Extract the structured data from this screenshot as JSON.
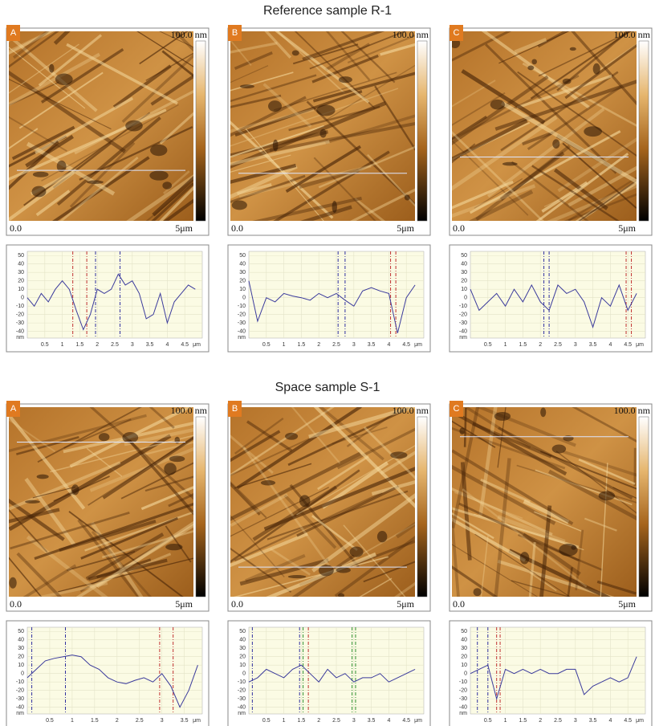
{
  "sections": [
    {
      "title": "Reference sample R-1",
      "panels": [
        {
          "letter": "A",
          "scale_top": "100.0 nm",
          "origin": "0.0",
          "length": "5μm"
        },
        {
          "letter": "B",
          "scale_top": "100.0 nm",
          "origin": "0.0",
          "length": "5μm"
        },
        {
          "letter": "C",
          "scale_top": "100.0 nm",
          "origin": "0.0",
          "length": "5μm"
        }
      ]
    },
    {
      "title": "Space sample S-1",
      "panels": [
        {
          "letter": "A",
          "scale_top": "100.0 nm",
          "origin": "0.0",
          "length": "5μm"
        },
        {
          "letter": "B",
          "scale_top": "100.0 nm",
          "origin": "0.0",
          "length": "5μm"
        },
        {
          "letter": "C",
          "scale_top": "100.0 nm",
          "origin": "0.0",
          "length": "5μm"
        }
      ]
    }
  ],
  "chart_data": [
    {
      "type": "line",
      "y_unit": "nm",
      "x_unit": "μm",
      "color": "#3a3a9c",
      "x": [
        0,
        0.2,
        0.4,
        0.6,
        0.8,
        1.0,
        1.2,
        1.4,
        1.6,
        1.8,
        2.0,
        2.2,
        2.4,
        2.6,
        2.8,
        3.0,
        3.2,
        3.4,
        3.6,
        3.8,
        4.0,
        4.2,
        4.4,
        4.6,
        4.8
      ],
      "values": [
        0,
        -10,
        5,
        -5,
        10,
        20,
        10,
        -15,
        -38,
        -20,
        10,
        5,
        10,
        28,
        15,
        20,
        5,
        -25,
        -20,
        5,
        -30,
        -5,
        5,
        15,
        10
      ],
      "markers": [
        {
          "x": 1.3,
          "color": "#c03030"
        },
        {
          "x": 1.7,
          "color": "#c03030"
        },
        {
          "x": 1.95,
          "color": "#3030a0"
        },
        {
          "x": 2.65,
          "color": "#3030a0"
        }
      ],
      "xlim": [
        0,
        5
      ],
      "ylim": [
        -48,
        55
      ],
      "xticks": [
        0.5,
        1,
        1.5,
        2,
        2.5,
        3,
        3.5,
        4,
        4.5
      ],
      "yticks": [
        50,
        40,
        30,
        20,
        10,
        0,
        -10,
        -20,
        -30,
        -40
      ]
    },
    {
      "type": "line",
      "y_unit": "nm",
      "x_unit": "μm",
      "color": "#3a3a9c",
      "x": [
        0,
        0.25,
        0.5,
        0.75,
        1,
        1.25,
        1.5,
        1.75,
        2,
        2.25,
        2.5,
        2.75,
        3,
        3.25,
        3.5,
        3.75,
        4,
        4.25,
        4.5,
        4.75
      ],
      "values": [
        20,
        -28,
        0,
        -5,
        5,
        2,
        0,
        -3,
        5,
        0,
        5,
        -3,
        -10,
        8,
        12,
        8,
        5,
        -42,
        0,
        15
      ],
      "markers": [
        {
          "x": 2.55,
          "color": "#3030a0"
        },
        {
          "x": 2.75,
          "color": "#3030a0"
        },
        {
          "x": 4.05,
          "color": "#c03030"
        },
        {
          "x": 4.2,
          "color": "#c03030"
        }
      ],
      "xlim": [
        0,
        5
      ],
      "ylim": [
        -48,
        55
      ],
      "xticks": [
        0.5,
        1,
        1.5,
        2,
        2.5,
        3,
        3.5,
        4,
        4.5
      ],
      "yticks": [
        50,
        40,
        30,
        20,
        10,
        0,
        -10,
        -20,
        -30,
        -40
      ]
    },
    {
      "type": "line",
      "y_unit": "nm",
      "x_unit": "μm",
      "color": "#3a3a9c",
      "x": [
        0,
        0.25,
        0.5,
        0.75,
        1,
        1.25,
        1.5,
        1.75,
        2,
        2.25,
        2.5,
        2.75,
        3,
        3.25,
        3.5,
        3.75,
        4,
        4.25,
        4.5,
        4.75
      ],
      "values": [
        10,
        -15,
        -5,
        5,
        -10,
        10,
        -5,
        15,
        -5,
        -15,
        15,
        5,
        10,
        -5,
        -35,
        0,
        -10,
        15,
        -15,
        5
      ],
      "markers": [
        {
          "x": 2.1,
          "color": "#3030a0"
        },
        {
          "x": 2.25,
          "color": "#3030a0"
        },
        {
          "x": 4.45,
          "color": "#c03030"
        },
        {
          "x": 4.6,
          "color": "#c03030"
        }
      ],
      "xlim": [
        0,
        5
      ],
      "ylim": [
        -48,
        55
      ],
      "xticks": [
        0.5,
        1,
        1.5,
        2,
        2.5,
        3,
        3.5,
        4,
        4.5
      ],
      "yticks": [
        50,
        40,
        30,
        20,
        10,
        0,
        -10,
        -20,
        -30,
        -40
      ]
    },
    {
      "type": "line",
      "y_unit": "nm",
      "x_unit": "μm",
      "color": "#3a3a9c",
      "x": [
        0,
        0.2,
        0.4,
        0.6,
        0.8,
        1.0,
        1.2,
        1.4,
        1.6,
        1.8,
        2.0,
        2.2,
        2.4,
        2.6,
        2.8,
        3.0,
        3.2,
        3.4,
        3.6,
        3.8
      ],
      "values": [
        -5,
        5,
        15,
        18,
        20,
        22,
        20,
        10,
        5,
        -5,
        -10,
        -12,
        -8,
        -5,
        -10,
        0,
        -15,
        -40,
        -20,
        10
      ],
      "markers": [
        {
          "x": 0.1,
          "color": "#3030a0"
        },
        {
          "x": 0.85,
          "color": "#3030a0"
        },
        {
          "x": 2.95,
          "color": "#c03030"
        },
        {
          "x": 3.25,
          "color": "#c03030"
        }
      ],
      "xlim": [
        0,
        3.9
      ],
      "ylim": [
        -48,
        55
      ],
      "xticks": [
        0.5,
        1,
        1.5,
        2,
        2.5,
        3,
        3.5
      ],
      "yticks": [
        50,
        40,
        30,
        20,
        10,
        0,
        -10,
        -20,
        -30,
        -40
      ]
    },
    {
      "type": "line",
      "y_unit": "nm",
      "x_unit": "μm",
      "color": "#3a3a9c",
      "x": [
        0,
        0.25,
        0.5,
        0.75,
        1,
        1.25,
        1.5,
        1.75,
        2,
        2.25,
        2.5,
        2.75,
        3,
        3.25,
        3.5,
        3.75,
        4,
        4.25,
        4.5,
        4.75
      ],
      "values": [
        -10,
        -5,
        5,
        0,
        -5,
        5,
        10,
        0,
        -10,
        5,
        -5,
        0,
        -10,
        -5,
        -5,
        0,
        -10,
        -5,
        0,
        5
      ],
      "markers": [
        {
          "x": 0.1,
          "color": "#3030a0"
        },
        {
          "x": 1.45,
          "color": "#3030a0"
        },
        {
          "x": 1.55,
          "color": "#309030"
        },
        {
          "x": 1.7,
          "color": "#c03030"
        },
        {
          "x": 2.95,
          "color": "#309030"
        },
        {
          "x": 3.05,
          "color": "#309030"
        }
      ],
      "xlim": [
        0,
        5
      ],
      "ylim": [
        -48,
        55
      ],
      "xticks": [
        0.5,
        1,
        1.5,
        2,
        2.5,
        3,
        3.5,
        4,
        4.5
      ],
      "yticks": [
        50,
        40,
        30,
        20,
        10,
        0,
        -10,
        -20,
        -30,
        -40
      ]
    },
    {
      "type": "line",
      "y_unit": "nm",
      "x_unit": "μm",
      "color": "#3a3a9c",
      "x": [
        0,
        0.25,
        0.5,
        0.75,
        1,
        1.25,
        1.5,
        1.75,
        2,
        2.25,
        2.5,
        2.75,
        3,
        3.25,
        3.5,
        3.75,
        4,
        4.25,
        4.5,
        4.75
      ],
      "values": [
        0,
        5,
        10,
        -30,
        5,
        0,
        5,
        0,
        5,
        0,
        0,
        5,
        5,
        -25,
        -15,
        -10,
        -5,
        -10,
        -5,
        20
      ],
      "markers": [
        {
          "x": 0.2,
          "color": "#3030a0"
        },
        {
          "x": 0.5,
          "color": "#3030a0"
        },
        {
          "x": 0.75,
          "color": "#c03030"
        },
        {
          "x": 0.85,
          "color": "#c03030"
        }
      ],
      "xlim": [
        0,
        5
      ],
      "ylim": [
        -48,
        55
      ],
      "xticks": [
        0.5,
        1,
        1.5,
        2,
        2.5,
        3,
        3.5,
        4,
        4.5
      ],
      "yticks": [
        50,
        40,
        30,
        20,
        10,
        0,
        -10,
        -20,
        -30,
        -40
      ]
    }
  ]
}
